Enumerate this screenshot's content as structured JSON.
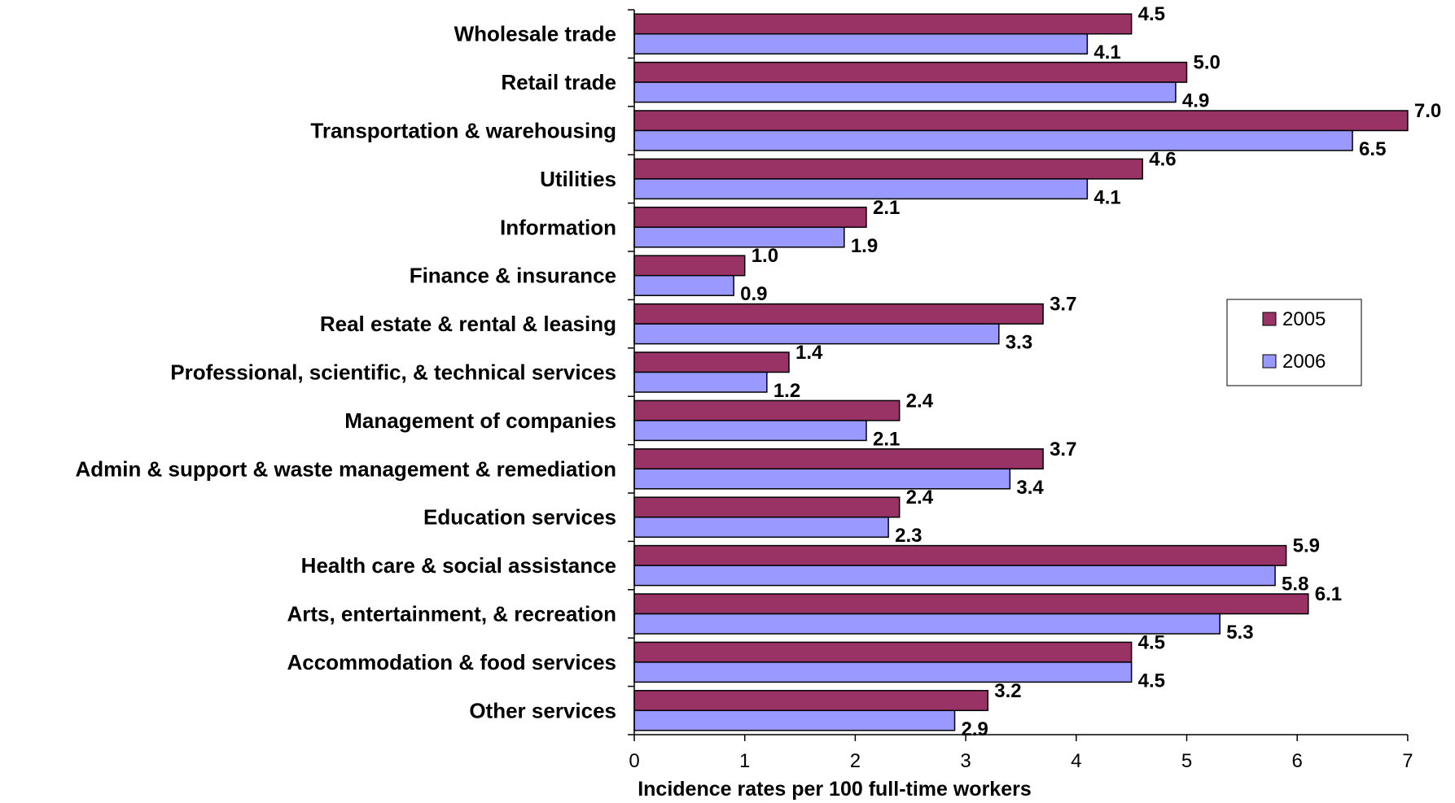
{
  "chart_data": {
    "type": "bar",
    "orientation": "horizontal",
    "categories": [
      "Wholesale trade",
      "Retail trade",
      "Transportation & warehousing",
      "Utilities",
      "Information",
      "Finance & insurance",
      "Real estate & rental & leasing",
      "Professional, scientific, & technical services",
      "Management of companies",
      "Admin & support & waste management & remediation",
      "Education services",
      "Health care & social assistance",
      "Arts, entertainment, & recreation",
      "Accommodation & food services",
      "Other services"
    ],
    "series": [
      {
        "name": "2005",
        "color": "#993366",
        "values": [
          4.5,
          5.0,
          7.0,
          4.6,
          2.1,
          1.0,
          3.7,
          1.4,
          2.4,
          3.7,
          2.4,
          5.9,
          6.1,
          4.5,
          3.2
        ],
        "labels": [
          "4.5",
          "5.0",
          "7.0",
          "4.6",
          "2.1",
          "1.0",
          "3.7",
          "1.4",
          "2.4",
          "3.7",
          "2.4",
          "5.9",
          "6.1",
          "4.5",
          "3.2"
        ]
      },
      {
        "name": "2006",
        "color": "#9999FF",
        "values": [
          4.1,
          4.9,
          6.5,
          4.1,
          1.9,
          0.9,
          3.3,
          1.2,
          2.1,
          3.4,
          2.3,
          5.8,
          5.3,
          4.5,
          2.9
        ],
        "labels": [
          "4.1",
          "4.9",
          "6.5",
          "4.1",
          "1.9",
          "0.9",
          "3.3",
          "1.2",
          "2.1",
          "3.4",
          "2.3",
          "5.8",
          "5.3",
          "4.5",
          "2.9"
        ]
      }
    ],
    "xlabel": "Incidence rates per 100 full-time workers",
    "ylabel": "",
    "xlim": [
      0,
      7
    ],
    "xticks": [
      "0",
      "1",
      "2",
      "3",
      "4",
      "5",
      "6",
      "7"
    ],
    "grid": false,
    "legend": {
      "position": "right",
      "entries": [
        "2005",
        "2006"
      ]
    }
  }
}
